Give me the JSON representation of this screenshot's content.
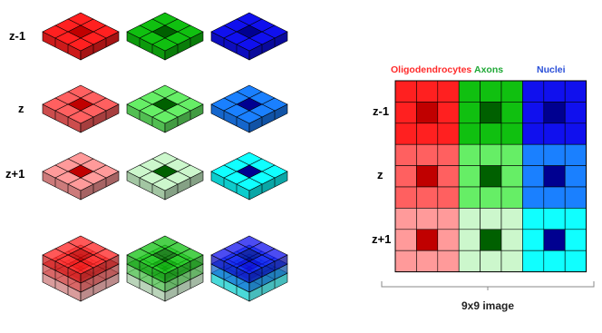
{
  "row_labels": [
    "z-1",
    "z",
    "z+1"
  ],
  "grid": {
    "col_titles": [
      {
        "text": "Oligodendrocytes",
        "color": "#ff2a2a"
      },
      {
        "text": "Axons",
        "color": "#1fa836"
      },
      {
        "text": "Nuclei",
        "color": "#2a4fd8"
      }
    ],
    "row_labels": [
      "z-1",
      "z",
      "z+1"
    ],
    "caption": "9x9 image"
  },
  "palette": {
    "red": {
      "z-1": "#ff2020",
      "z": "#ff6060",
      "z+1": "#ff9a9a",
      "center": [
        "#c00000",
        "#c00000",
        "#c00000"
      ]
    },
    "green": {
      "z-1": "#10c010",
      "z": "#66ee66",
      "z+1": "#ccf7cc",
      "center": [
        "#006000",
        "#006000",
        "#006000"
      ]
    },
    "blue": {
      "z-1": "#1010ee",
      "z": "#1a80ff",
      "z+1": "#10ffff",
      "center": [
        "#000090",
        "#000090",
        "#000090"
      ]
    }
  },
  "blocks": [
    {
      "channel": "red",
      "layer": "z-1"
    },
    {
      "channel": "green",
      "layer": "z-1"
    },
    {
      "channel": "blue",
      "layer": "z-1"
    },
    {
      "channel": "red",
      "layer": "z"
    },
    {
      "channel": "green",
      "layer": "z"
    },
    {
      "channel": "blue",
      "layer": "z"
    },
    {
      "channel": "red",
      "layer": "z+1"
    },
    {
      "channel": "green",
      "layer": "z+1"
    },
    {
      "channel": "blue",
      "layer": "z+1"
    }
  ],
  "stacks": [
    {
      "channel": "red"
    },
    {
      "channel": "green"
    },
    {
      "channel": "blue"
    }
  ]
}
